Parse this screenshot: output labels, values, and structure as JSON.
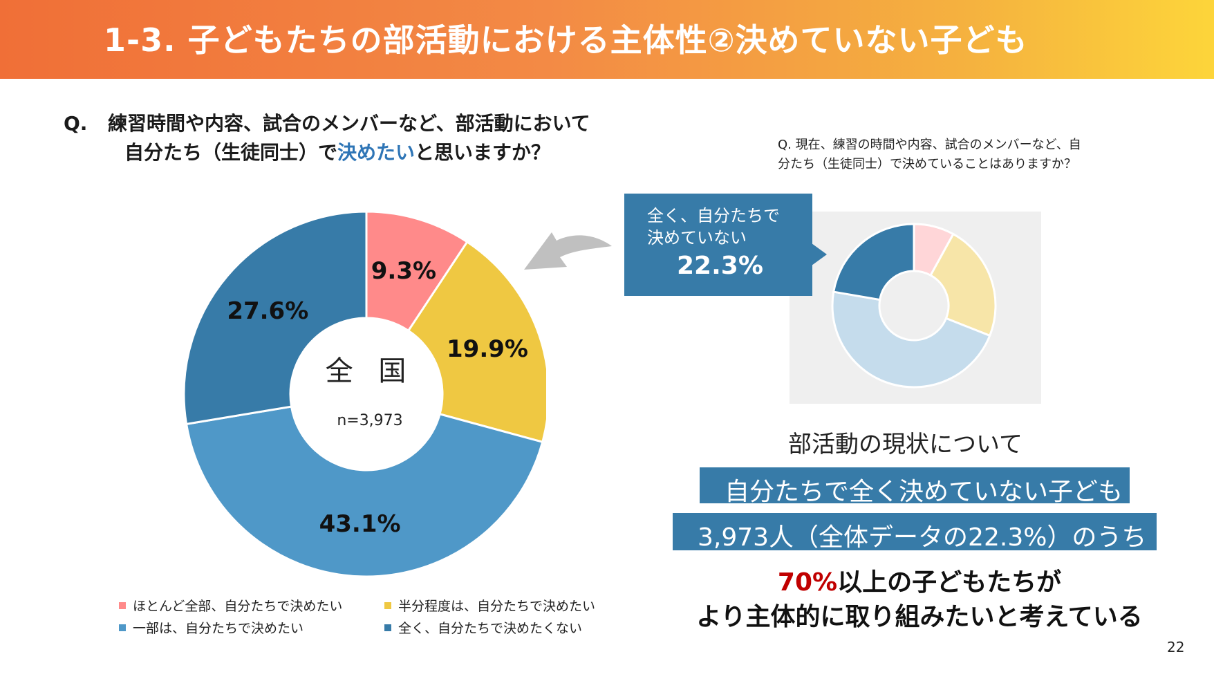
{
  "header": {
    "title": "1-3. 子どもたちの部活動における主体性②決めていない子ども"
  },
  "question": {
    "mark": "Q.",
    "line1": "練習時間や内容、試合のメンバーなど、部活動において",
    "line2_pre": "自分たち（生徒同士）で",
    "line2_highlight": "決めたい",
    "line2_post": "と思いますか？"
  },
  "chart_data": [
    {
      "type": "pie",
      "title": "全 国",
      "subtitle": "n=3,973",
      "categories": [
        "ほとんど全部、自分たちで決めたい",
        "半分程度は、自分たちで決めたい",
        "一部は、自分たちで決めたい",
        "全く、自分たちで決めたくない"
      ],
      "values": [
        9.3,
        19.9,
        43.1,
        27.6
      ],
      "labels": [
        "9.3%",
        "19.9%",
        "43.1%",
        "27.6%"
      ],
      "colors": [
        "#ff8a8a",
        "#efc842",
        "#4f98c8",
        "#377ba8"
      ],
      "legend": "bottom"
    },
    {
      "type": "pie",
      "title": "",
      "values": [
        8.0,
        23.0,
        46.7,
        22.3
      ],
      "colors": [
        "#ffd6d8",
        "#f7e5a8",
        "#c5dcec",
        "#377ba8"
      ],
      "highlight": "全く、自分たちで決めていない 22.3%"
    }
  ],
  "legend": {
    "items": [
      {
        "label": "ほとんど全部、自分たちで決めたい",
        "color": "#ff8a8a"
      },
      {
        "label": "半分程度は、自分たちで決めたい",
        "color": "#efc842"
      },
      {
        "label": "一部は、自分たちで決めたい",
        "color": "#4f98c8"
      },
      {
        "label": "全く、自分たちで決めたくない",
        "color": "#377ba8"
      }
    ]
  },
  "mini": {
    "question": "Q. 現在、練習の時間や内容、試合のメンバーなど、自分たち（生徒同士）で決めていることはありますか？",
    "callout_text": "全く、自分たちで\n決めていない",
    "callout_pct": "22.3%"
  },
  "status": {
    "title": "部活動の現状について",
    "banner1": "自分たちで全く決めていない子ども",
    "banner2": "3,973人（全体データの22.3%）のうち"
  },
  "conclusion": {
    "red": "70%",
    "line1_rest": "以上の子どもたちが",
    "line2": "より主体的に取り組みたいと考えている"
  },
  "page_number": "22",
  "icons": {
    "arrow": "curved-arrow-icon"
  }
}
